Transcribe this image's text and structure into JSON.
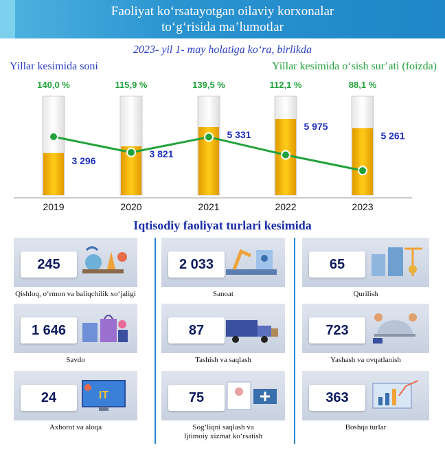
{
  "header": {
    "title_line1": "Faoliyat koʻrsatayotgan oilaviy korxonalar",
    "title_line2": "toʻgʻrisida maʼlumotlar"
  },
  "subtitle": "2023- yil 1- may holatiga koʻra, birlikda",
  "left_label": "Yillar kesimida soni",
  "right_label": "Yillar kesimida oʻsish surʼati (foizda)",
  "chart_data": {
    "type": "bar",
    "categories": [
      "2019",
      "2020",
      "2021",
      "2022",
      "2023"
    ],
    "series": [
      {
        "name": "Yillar kesimida soni",
        "type": "bar",
        "values": [
          3296,
          3821,
          5331,
          5975,
          5261
        ],
        "labels": [
          "3 296",
          "3 821",
          "5 331",
          "5 975",
          "5 261"
        ],
        "color": "#f5b800"
      },
      {
        "name": "Yillar kesimida oʻsish surʼati (foizda)",
        "type": "line",
        "values": [
          140.0,
          115.9,
          139.5,
          112.1,
          88.1
        ],
        "labels": [
          "140,0 %",
          "115,9 %",
          "139,5 %",
          "112,1 %",
          "88,1 %"
        ],
        "color": "#22a23a"
      }
    ],
    "ylim_bars": [
      0,
      7000
    ],
    "ylim_line": [
      0,
      200
    ],
    "grid": false,
    "legend": "none"
  },
  "section_title": "Iqtisodiy faoliyat turlari kesimida",
  "sectors": [
    {
      "value": "245",
      "label": "Qishloq, oʻrmon va baliqchilik xoʻjaligi",
      "icon": "agriculture-icon"
    },
    {
      "value": "2 033",
      "label": "Sanoat",
      "icon": "factory-robot-icon"
    },
    {
      "value": "65",
      "label": "Qurilish",
      "icon": "construction-icon"
    },
    {
      "value": "1 646",
      "label": "Savdo",
      "icon": "shopping-bags-icon"
    },
    {
      "value": "87",
      "label": "Tashish va saqlash",
      "icon": "delivery-truck-icon"
    },
    {
      "value": "723",
      "label": "Yashash va ovqatlanish",
      "icon": "catering-icon"
    },
    {
      "value": "24",
      "label": "Axborot va aloqa",
      "icon": "it-monitor-icon"
    },
    {
      "value": "75",
      "label": "Sogʻliqni saqlash va Ijtimoiy xizmat koʻrsatish",
      "icon": "medical-card-icon"
    },
    {
      "value": "363",
      "label": "Boshqa turlar",
      "icon": "analytics-board-icon"
    }
  ]
}
